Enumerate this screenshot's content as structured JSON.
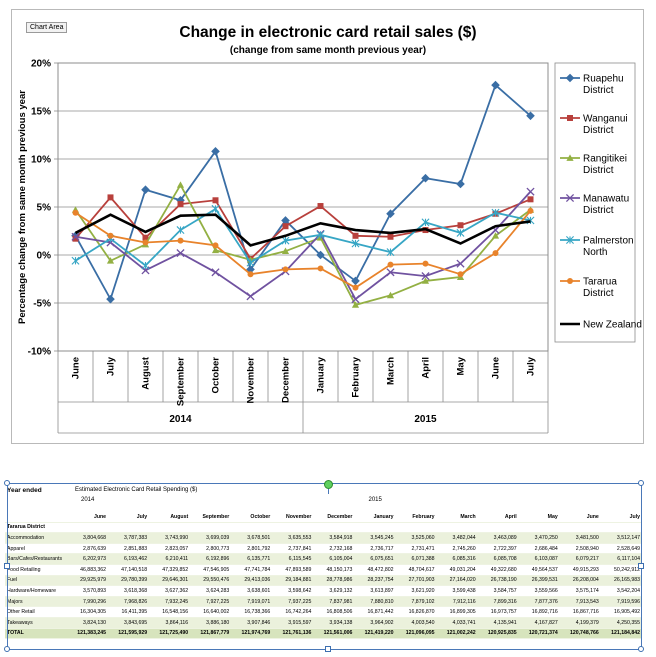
{
  "ui": {
    "chart_area_tag": "Chart Area"
  },
  "chart_data": {
    "type": "line",
    "title": "Change in electronic card retail sales ($)",
    "subtitle": "(change from same month previous year)",
    "xlabel": "",
    "ylabel": "Percentage change from same month previous year",
    "ylim": [
      -10,
      20
    ],
    "yticks": [
      -10,
      -5,
      0,
      5,
      10,
      15,
      20
    ],
    "ytick_labels": [
      "-10%",
      "-5%",
      "0%",
      "5%",
      "10%",
      "15%",
      "20%"
    ],
    "grid": true,
    "legend_position": "right",
    "categories": [
      "June",
      "July",
      "August",
      "September",
      "October",
      "November",
      "December",
      "January",
      "February",
      "March",
      "April",
      "May",
      "June",
      "July"
    ],
    "year_groups": [
      {
        "label": "2014",
        "start": 0,
        "end": 6
      },
      {
        "label": "2015",
        "start": 7,
        "end": 13
      }
    ],
    "series": [
      {
        "name": "Ruapehu District",
        "color": "#3a6ea5",
        "marker": "diamond",
        "values": [
          2.0,
          -4.6,
          6.8,
          5.7,
          10.8,
          -1.5,
          3.6,
          0.0,
          -2.7,
          4.3,
          8.0,
          7.4,
          17.7,
          14.5
        ]
      },
      {
        "name": "Wanganui District",
        "color": "#b8403c",
        "marker": "square",
        "values": [
          1.7,
          6.0,
          1.8,
          5.3,
          5.7,
          -0.4,
          3.0,
          5.1,
          2.0,
          1.9,
          2.6,
          3.1,
          4.3,
          5.8
        ]
      },
      {
        "name": "Rangitikei District",
        "color": "#93b043",
        "marker": "triangle",
        "values": [
          4.7,
          -0.6,
          1.1,
          7.3,
          0.5,
          -0.5,
          0.4,
          1.8,
          -5.2,
          -4.2,
          -2.7,
          -2.3,
          2.0,
          4.7
        ]
      },
      {
        "name": "Manawatu District",
        "color": "#7052a0",
        "marker": "x",
        "values": [
          1.9,
          1.3,
          -1.6,
          0.2,
          -1.8,
          -4.3,
          -1.7,
          2.2,
          -4.6,
          -1.8,
          -2.2,
          -0.9,
          2.6,
          6.6
        ]
      },
      {
        "name": "Palmerston North",
        "color": "#37a6c5",
        "marker": "star",
        "values": [
          -0.6,
          1.7,
          -1.1,
          2.6,
          4.8,
          -0.8,
          1.5,
          2.1,
          1.2,
          0.3,
          3.4,
          2.3,
          4.4,
          3.6
        ]
      },
      {
        "name": "Tararua District",
        "color": "#e8832b",
        "marker": "circle",
        "values": [
          4.4,
          2.0,
          1.3,
          1.5,
          1.0,
          -2.0,
          -1.5,
          -1.4,
          -3.4,
          -1.0,
          -0.9,
          -2.0,
          0.2,
          4.6
        ]
      },
      {
        "name": "New Zealand",
        "color": "#000000",
        "marker": "none",
        "values": [
          2.3,
          4.2,
          2.4,
          4.1,
          4.2,
          1.0,
          2.0,
          3.3,
          2.6,
          2.3,
          2.7,
          1.2,
          3.0,
          3.5
        ]
      }
    ]
  },
  "table": {
    "year_ended_label": "Year ended",
    "title": "Estimated Electronic Card Retail Spending ($)",
    "year_labels": [
      {
        "text": "2014",
        "col": 0
      },
      {
        "text": "2015",
        "col": 7
      }
    ],
    "months": [
      "June",
      "July",
      "August",
      "September",
      "October",
      "November",
      "December",
      "January",
      "February",
      "March",
      "April",
      "May",
      "June",
      "July"
    ],
    "district": "Tararua District",
    "rows": [
      {
        "label": "Accommodation",
        "values": [
          "3,804,668",
          "3,787,383",
          "3,743,990",
          "3,699,039",
          "3,678,501",
          "3,635,553",
          "3,584,918",
          "3,545,245",
          "3,525,060",
          "3,482,044",
          "3,463,089",
          "3,470,250",
          "3,481,500",
          "3,512,147"
        ]
      },
      {
        "label": "Apparel",
        "values": [
          "2,876,639",
          "2,851,883",
          "2,823,057",
          "2,800,773",
          "2,801,792",
          "2,737,841",
          "2,732,168",
          "2,736,717",
          "2,731,471",
          "2,745,260",
          "2,722,397",
          "2,686,484",
          "2,508,940",
          "2,528,649"
        ]
      },
      {
        "label": "Bars/Cafes/Restaurants",
        "values": [
          "6,202,973",
          "6,193,462",
          "6,210,411",
          "6,192,896",
          "6,135,771",
          "6,115,545",
          "6,105,004",
          "6,075,651",
          "6,071,388",
          "6,085,316",
          "6,085,708",
          "6,103,087",
          "6,079,217",
          "6,117,104"
        ]
      },
      {
        "label": "Food Retailing",
        "values": [
          "46,883,362",
          "47,140,518",
          "47,329,852",
          "47,546,905",
          "47,741,784",
          "47,893,589",
          "48,150,173",
          "48,472,802",
          "48,704,617",
          "49,031,204",
          "49,322,680",
          "49,564,537",
          "49,915,293",
          "50,242,912"
        ]
      },
      {
        "label": "Fuel",
        "values": [
          "29,925,979",
          "29,780,399",
          "29,646,301",
          "29,550,476",
          "29,413,036",
          "29,184,881",
          "28,778,986",
          "28,237,754",
          "27,701,903",
          "27,164,020",
          "26,738,190",
          "26,399,531",
          "26,208,004",
          "26,165,983"
        ]
      },
      {
        "label": "Hardware/Homeware",
        "values": [
          "3,570,893",
          "3,618,368",
          "3,627,362",
          "3,624,283",
          "3,638,601",
          "3,598,642",
          "3,629,132",
          "3,613,897",
          "3,621,920",
          "3,599,438",
          "3,584,757",
          "3,559,566",
          "3,575,174",
          "3,542,204"
        ]
      },
      {
        "label": "Majors",
        "values": [
          "7,990,296",
          "7,968,826",
          "7,932,245",
          "7,927,225",
          "7,919,071",
          "7,937,225",
          "7,837,981",
          "7,880,810",
          "7,879,102",
          "7,912,116",
          "7,899,316",
          "7,877,376",
          "7,913,543",
          "7,919,596"
        ]
      },
      {
        "label": "Other Retail",
        "values": [
          "16,304,305",
          "16,411,395",
          "16,548,156",
          "16,640,002",
          "16,738,366",
          "16,742,264",
          "16,808,506",
          "16,871,442",
          "16,826,870",
          "16,899,305",
          "16,973,757",
          "16,892,716",
          "16,867,716",
          "16,905,492"
        ]
      },
      {
        "label": "Takeaways",
        "values": [
          "3,824,130",
          "3,843,695",
          "3,864,116",
          "3,886,180",
          "3,907,846",
          "3,915,597",
          "3,934,138",
          "3,964,902",
          "4,003,540",
          "4,033,741",
          "4,135,941",
          "4,167,827",
          "4,199,379",
          "4,250,355"
        ]
      }
    ],
    "total": {
      "label": "TOTAL",
      "values": [
        "121,383,245",
        "121,595,929",
        "121,725,490",
        "121,867,779",
        "121,974,769",
        "121,761,136",
        "121,561,006",
        "121,419,220",
        "121,096,095",
        "121,002,242",
        "120,925,835",
        "120,721,374",
        "120,748,766",
        "121,184,842"
      ]
    }
  }
}
